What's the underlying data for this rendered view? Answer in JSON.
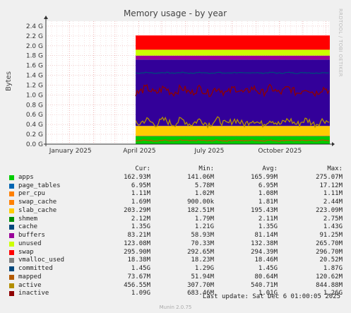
{
  "chart_data": {
    "type": "area",
    "title": "Memory usage - by year",
    "ylabel": "Bytes",
    "ylim": [
      0,
      2.5
    ],
    "y_unit": "G",
    "yticks": [
      "0.0",
      "0.2",
      "0.4",
      "0.6",
      "0.8",
      "1.0",
      "1.2",
      "1.4",
      "1.6",
      "1.8",
      "2.0",
      "2.2",
      "2.4"
    ],
    "y_tick_suffix": " G",
    "x_tick_labels": [
      "January 2025",
      "April 2025",
      "July 2025",
      "October 2025"
    ],
    "grid": true,
    "data_start": "2025-03-28",
    "stack_bands_G": [
      {
        "name": "apps",
        "color": "#00cc00",
        "from": 0.0,
        "to": 0.16
      },
      {
        "name": "page_tables",
        "color": "#0066b3",
        "from": 0.16,
        "to": 0.17
      },
      {
        "name": "per_cpu",
        "color": "#ff8000",
        "from": 0.17,
        "to": 0.171
      },
      {
        "name": "slab_cache",
        "color": "#ffcc00",
        "from": 0.171,
        "to": 0.37
      },
      {
        "name": "cache",
        "color": "#330099",
        "from": 0.37,
        "to": 1.72
      },
      {
        "name": "buffers",
        "color": "#990099",
        "from": 1.72,
        "to": 1.8
      },
      {
        "name": "unused",
        "color": "#ccff00",
        "from": 1.8,
        "to": 1.92
      },
      {
        "name": "swap",
        "color": "#ff0000",
        "from": 1.92,
        "to": 2.21
      }
    ],
    "lines_G": [
      {
        "name": "committed",
        "color": "#00487d",
        "value": 1.45
      },
      {
        "name": "mapped",
        "color": "#b35a00",
        "value": 0.074
      },
      {
        "name": "active",
        "color": "#b38f00",
        "value": 0.45
      },
      {
        "name": "inactive",
        "color": "#8f0000",
        "value": 1.09
      }
    ]
  },
  "legend": {
    "headers": [
      "Cur:",
      "Min:",
      "Avg:",
      "Max:"
    ],
    "rows": [
      {
        "name": "apps",
        "color": "#00cc00",
        "cur": "162.93M",
        "min": "141.06M",
        "avg": "165.99M",
        "max": "275.07M"
      },
      {
        "name": "page_tables",
        "color": "#0066b3",
        "cur": "6.95M",
        "min": "5.78M",
        "avg": "6.95M",
        "max": "17.12M"
      },
      {
        "name": "per_cpu",
        "color": "#ff8000",
        "cur": "1.11M",
        "min": "1.02M",
        "avg": "1.08M",
        "max": "1.11M"
      },
      {
        "name": "swap_cache",
        "color": "#ff8000",
        "cur": "1.69M",
        "min": "900.00k",
        "avg": "1.81M",
        "max": "2.44M"
      },
      {
        "name": "slab_cache",
        "color": "#ffcc00",
        "cur": "203.29M",
        "min": "182.51M",
        "avg": "195.43M",
        "max": "223.09M"
      },
      {
        "name": "shmem",
        "color": "#008f00",
        "cur": "2.12M",
        "min": "1.79M",
        "avg": "2.11M",
        "max": "2.75M"
      },
      {
        "name": "cache",
        "color": "#00487d",
        "cur": "1.35G",
        "min": "1.21G",
        "avg": "1.35G",
        "max": "1.43G"
      },
      {
        "name": "buffers",
        "color": "#990099",
        "cur": "83.21M",
        "min": "58.93M",
        "avg": "81.14M",
        "max": "91.25M"
      },
      {
        "name": "unused",
        "color": "#ccff00",
        "cur": "123.08M",
        "min": "70.33M",
        "avg": "132.38M",
        "max": "265.70M"
      },
      {
        "name": "swap",
        "color": "#ff0000",
        "cur": "295.90M",
        "min": "292.65M",
        "avg": "294.39M",
        "max": "296.70M"
      },
      {
        "name": "vmalloc_used",
        "color": "#808080",
        "cur": "18.38M",
        "min": "18.23M",
        "avg": "18.46M",
        "max": "20.52M"
      },
      {
        "name": "committed",
        "color": "#00487d",
        "cur": "1.45G",
        "min": "1.29G",
        "avg": "1.45G",
        "max": "1.87G"
      },
      {
        "name": "mapped",
        "color": "#b35a00",
        "cur": "73.67M",
        "min": "51.94M",
        "avg": "80.64M",
        "max": "120.62M"
      },
      {
        "name": "active",
        "color": "#b38f00",
        "cur": "456.55M",
        "min": "307.70M",
        "avg": "540.71M",
        "max": "844.88M"
      },
      {
        "name": "inactive",
        "color": "#8f0000",
        "cur": "1.09G",
        "min": "683.46M",
        "avg": "1.01G",
        "max": "1.26G"
      }
    ]
  },
  "footer": {
    "last_update": "Last update: Sat Dec  6 01:00:05 2025",
    "munin": "Munin 2.0.75"
  },
  "side_label": "RRDTOOL / TOBI OETIKER"
}
